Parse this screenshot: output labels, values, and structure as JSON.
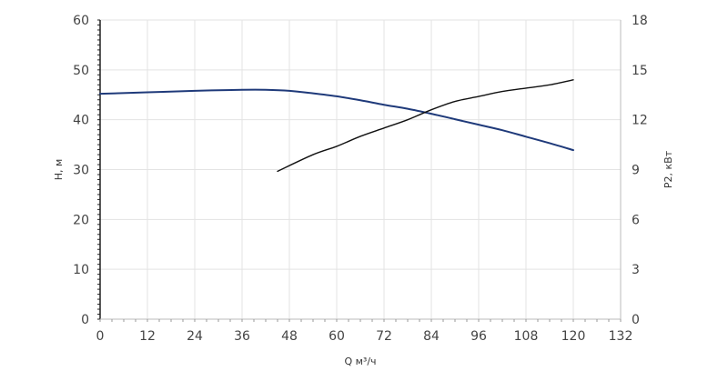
{
  "chart_data": {
    "type": "line",
    "xlabel": "Q м³/ч",
    "ylabel_left": "H, м",
    "ylabel_right": "P2, кВт",
    "xlim": [
      0,
      132
    ],
    "ylim_left": [
      0,
      60
    ],
    "ylim_right": [
      0,
      18
    ],
    "x_ticks": [
      "0",
      "12",
      "24",
      "36",
      "48",
      "60",
      "72",
      "84",
      "96",
      "108",
      "120",
      "132"
    ],
    "y_left_ticks": [
      "0",
      "10",
      "20",
      "30",
      "40",
      "50",
      "60"
    ],
    "y_right_ticks": [
      "0",
      "3",
      "6",
      "9",
      "12",
      "15",
      "18"
    ],
    "grid": true,
    "series": [
      {
        "axis": "left",
        "color": "#1f3a7a",
        "x": [
          0,
          12,
          24,
          36,
          42,
          48,
          54,
          60,
          66,
          72,
          78,
          84,
          90,
          96,
          102,
          108,
          114,
          120
        ],
        "y": [
          45.2,
          45.5,
          45.8,
          46.0,
          46.0,
          45.8,
          45.3,
          44.7,
          43.9,
          43.0,
          42.2,
          41.2,
          40.1,
          39.0,
          37.9,
          36.6,
          35.3,
          33.9
        ]
      },
      {
        "axis": "right",
        "color": "#111111",
        "x": [
          45,
          54,
          60,
          66,
          72,
          78,
          84,
          90,
          96,
          102,
          108,
          114,
          120
        ],
        "y": [
          8.9,
          9.9,
          10.4,
          11.0,
          11.5,
          12.0,
          12.6,
          13.1,
          13.4,
          13.7,
          13.9,
          14.1,
          14.4
        ]
      }
    ]
  }
}
